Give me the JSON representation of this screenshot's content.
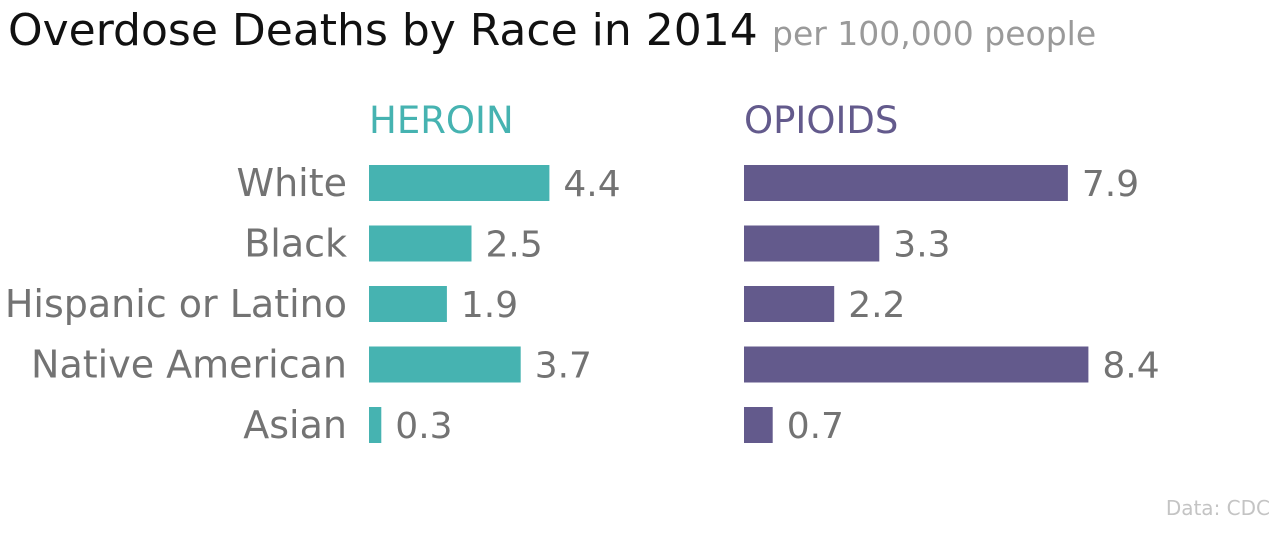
{
  "chart_data": {
    "type": "bar",
    "orientation": "horizontal",
    "layout": "small-multiples",
    "title": "Overdose Deaths by Race in 2014",
    "subtitle": "per 100,000 people",
    "categories": [
      "White",
      "Black",
      "Hispanic or Latino",
      "Native American",
      "Asian"
    ],
    "series": [
      {
        "name": "HEROIN",
        "color": "#46b3b1",
        "values": [
          4.4,
          2.5,
          1.9,
          3.7,
          0.3
        ],
        "labels": [
          "4.4",
          "2.5",
          "1.9",
          "3.7",
          "0.3"
        ]
      },
      {
        "name": "OPIOIDS",
        "color": "#635a8c",
        "values": [
          7.9,
          3.3,
          2.2,
          8.4,
          0.7
        ],
        "labels": [
          "7.9",
          "3.3",
          "2.2",
          "8.4",
          "0.7"
        ]
      }
    ],
    "grid": false,
    "axes_visible": false,
    "source": "Data: CDC"
  }
}
